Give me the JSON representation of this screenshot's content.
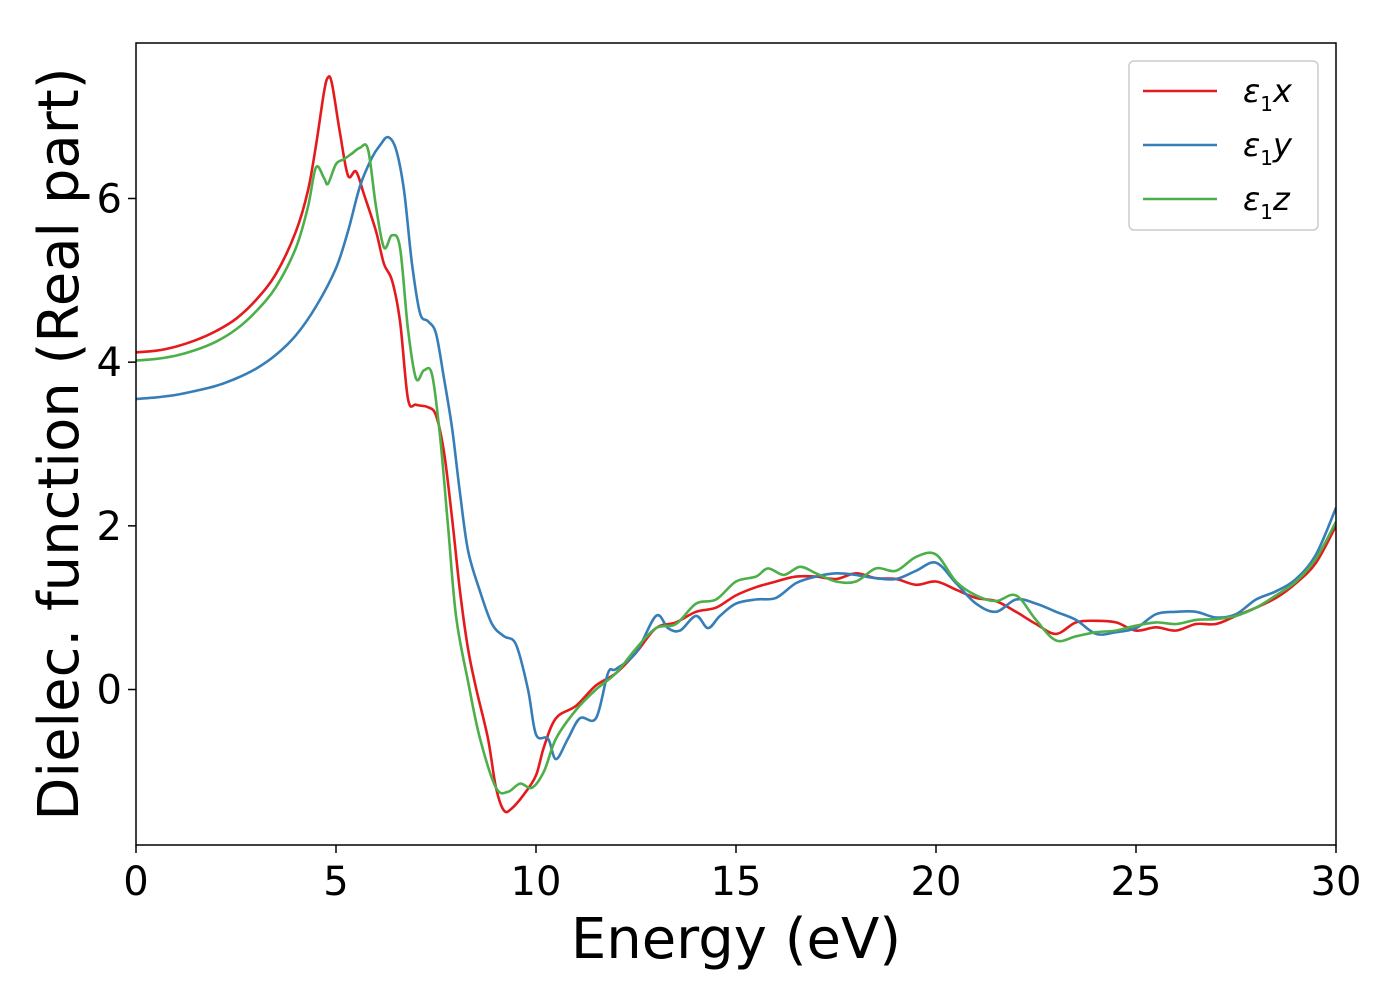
{
  "chart_data": {
    "type": "line",
    "xlabel": "Energy (eV)",
    "ylabel": "Dielec. function (Real part)",
    "xlim": [
      0,
      30
    ],
    "ylim": [
      -1.9,
      7.9
    ],
    "xticks": [
      0,
      5,
      10,
      15,
      20,
      25,
      30
    ],
    "yticks": [
      0,
      2,
      4,
      6
    ],
    "grid": false,
    "legend_position": "top-right",
    "series": [
      {
        "name": "ε1x",
        "legend": {
          "base": "ε",
          "sub": "1",
          "tail": "x"
        },
        "color": "#e41a1c",
        "points": [
          [
            0,
            4.12
          ],
          [
            0.5,
            4.14
          ],
          [
            1,
            4.19
          ],
          [
            1.5,
            4.27
          ],
          [
            2,
            4.38
          ],
          [
            2.5,
            4.53
          ],
          [
            3,
            4.76
          ],
          [
            3.5,
            5.08
          ],
          [
            4,
            5.6
          ],
          [
            4.3,
            6.1
          ],
          [
            4.5,
            6.65
          ],
          [
            4.7,
            7.3
          ],
          [
            4.8,
            7.48
          ],
          [
            4.9,
            7.4
          ],
          [
            5.1,
            6.8
          ],
          [
            5.3,
            6.28
          ],
          [
            5.5,
            6.33
          ],
          [
            5.7,
            6.05
          ],
          [
            6,
            5.6
          ],
          [
            6.2,
            5.2
          ],
          [
            6.4,
            5.0
          ],
          [
            6.6,
            4.5
          ],
          [
            6.8,
            3.55
          ],
          [
            7,
            3.48
          ],
          [
            7.3,
            3.45
          ],
          [
            7.5,
            3.35
          ],
          [
            7.7,
            2.9
          ],
          [
            7.9,
            2.1
          ],
          [
            8.1,
            1.2
          ],
          [
            8.3,
            0.5
          ],
          [
            8.5,
            0.02
          ],
          [
            8.8,
            -0.6
          ],
          [
            9,
            -1.2
          ],
          [
            9.2,
            -1.48
          ],
          [
            9.4,
            -1.45
          ],
          [
            9.7,
            -1.28
          ],
          [
            10,
            -1.05
          ],
          [
            10.2,
            -0.7
          ],
          [
            10.5,
            -0.35
          ],
          [
            11,
            -0.2
          ],
          [
            11.5,
            0.05
          ],
          [
            12,
            0.2
          ],
          [
            12.5,
            0.45
          ],
          [
            13,
            0.75
          ],
          [
            13.5,
            0.82
          ],
          [
            14,
            0.95
          ],
          [
            14.5,
            1.0
          ],
          [
            15,
            1.15
          ],
          [
            15.5,
            1.25
          ],
          [
            16,
            1.32
          ],
          [
            16.5,
            1.38
          ],
          [
            17,
            1.38
          ],
          [
            17.5,
            1.35
          ],
          [
            18,
            1.42
          ],
          [
            18.5,
            1.36
          ],
          [
            19,
            1.35
          ],
          [
            19.5,
            1.28
          ],
          [
            20,
            1.32
          ],
          [
            20.5,
            1.22
          ],
          [
            21,
            1.12
          ],
          [
            21.5,
            1.08
          ],
          [
            22,
            0.95
          ],
          [
            22.5,
            0.8
          ],
          [
            23,
            0.68
          ],
          [
            23.5,
            0.82
          ],
          [
            24,
            0.84
          ],
          [
            24.5,
            0.82
          ],
          [
            25,
            0.72
          ],
          [
            25.5,
            0.76
          ],
          [
            26,
            0.72
          ],
          [
            26.5,
            0.8
          ],
          [
            27,
            0.8
          ],
          [
            27.5,
            0.9
          ],
          [
            28,
            1.0
          ],
          [
            28.5,
            1.12
          ],
          [
            29,
            1.3
          ],
          [
            29.5,
            1.55
          ],
          [
            30,
            2.0
          ]
        ]
      },
      {
        "name": "ε1y",
        "legend": {
          "base": "ε",
          "sub": "1",
          "tail": "y"
        },
        "color": "#377eb8",
        "points": [
          [
            0,
            3.55
          ],
          [
            0.5,
            3.57
          ],
          [
            1,
            3.6
          ],
          [
            1.5,
            3.65
          ],
          [
            2,
            3.71
          ],
          [
            2.5,
            3.8
          ],
          [
            3,
            3.92
          ],
          [
            3.5,
            4.09
          ],
          [
            4,
            4.33
          ],
          [
            4.5,
            4.68
          ],
          [
            5,
            5.15
          ],
          [
            5.3,
            5.6
          ],
          [
            5.6,
            6.15
          ],
          [
            5.9,
            6.5
          ],
          [
            6.1,
            6.65
          ],
          [
            6.3,
            6.75
          ],
          [
            6.5,
            6.6
          ],
          [
            6.7,
            6.1
          ],
          [
            6.9,
            5.2
          ],
          [
            7.1,
            4.6
          ],
          [
            7.3,
            4.5
          ],
          [
            7.5,
            4.35
          ],
          [
            7.7,
            3.8
          ],
          [
            7.9,
            3.2
          ],
          [
            8.1,
            2.4
          ],
          [
            8.3,
            1.7
          ],
          [
            8.6,
            1.2
          ],
          [
            8.9,
            0.8
          ],
          [
            9.2,
            0.65
          ],
          [
            9.5,
            0.55
          ],
          [
            9.8,
            0.0
          ],
          [
            10,
            -0.55
          ],
          [
            10.3,
            -0.6
          ],
          [
            10.5,
            -0.85
          ],
          [
            10.8,
            -0.6
          ],
          [
            11.1,
            -0.35
          ],
          [
            11.5,
            -0.35
          ],
          [
            11.8,
            0.2
          ],
          [
            12,
            0.25
          ],
          [
            12.5,
            0.45
          ],
          [
            13,
            0.9
          ],
          [
            13.3,
            0.75
          ],
          [
            13.6,
            0.72
          ],
          [
            14,
            0.9
          ],
          [
            14.3,
            0.75
          ],
          [
            14.6,
            0.9
          ],
          [
            15,
            1.05
          ],
          [
            15.5,
            1.1
          ],
          [
            16,
            1.12
          ],
          [
            16.5,
            1.3
          ],
          [
            17,
            1.38
          ],
          [
            17.5,
            1.42
          ],
          [
            18,
            1.4
          ],
          [
            18.5,
            1.36
          ],
          [
            19,
            1.35
          ],
          [
            19.5,
            1.45
          ],
          [
            20,
            1.55
          ],
          [
            20.5,
            1.3
          ],
          [
            21,
            1.05
          ],
          [
            21.5,
            0.95
          ],
          [
            22,
            1.1
          ],
          [
            22.5,
            1.05
          ],
          [
            23,
            0.95
          ],
          [
            23.5,
            0.85
          ],
          [
            24,
            0.68
          ],
          [
            24.5,
            0.7
          ],
          [
            25,
            0.75
          ],
          [
            25.5,
            0.92
          ],
          [
            26,
            0.95
          ],
          [
            26.5,
            0.95
          ],
          [
            27,
            0.88
          ],
          [
            27.5,
            0.92
          ],
          [
            28,
            1.1
          ],
          [
            28.5,
            1.2
          ],
          [
            29,
            1.35
          ],
          [
            29.5,
            1.65
          ],
          [
            30,
            2.22
          ]
        ]
      },
      {
        "name": "ε1z",
        "legend": {
          "base": "ε",
          "sub": "1",
          "tail": "z"
        },
        "color": "#4daf4a",
        "points": [
          [
            0,
            4.02
          ],
          [
            0.5,
            4.04
          ],
          [
            1,
            4.08
          ],
          [
            1.5,
            4.15
          ],
          [
            2,
            4.25
          ],
          [
            2.5,
            4.4
          ],
          [
            3,
            4.62
          ],
          [
            3.5,
            4.92
          ],
          [
            4,
            5.4
          ],
          [
            4.3,
            5.9
          ],
          [
            4.5,
            6.38
          ],
          [
            4.7,
            6.25
          ],
          [
            4.8,
            6.18
          ],
          [
            5,
            6.42
          ],
          [
            5.2,
            6.48
          ],
          [
            5.4,
            6.55
          ],
          [
            5.6,
            6.62
          ],
          [
            5.8,
            6.6
          ],
          [
            6,
            5.9
          ],
          [
            6.2,
            5.4
          ],
          [
            6.4,
            5.55
          ],
          [
            6.6,
            5.4
          ],
          [
            6.8,
            4.4
          ],
          [
            7,
            3.8
          ],
          [
            7.2,
            3.9
          ],
          [
            7.4,
            3.85
          ],
          [
            7.6,
            3.1
          ],
          [
            7.8,
            2.0
          ],
          [
            8,
            0.9
          ],
          [
            8.3,
            0.1
          ],
          [
            8.6,
            -0.6
          ],
          [
            9,
            -1.2
          ],
          [
            9.3,
            -1.25
          ],
          [
            9.6,
            -1.15
          ],
          [
            9.9,
            -1.2
          ],
          [
            10.2,
            -1.0
          ],
          [
            10.5,
            -0.6
          ],
          [
            11,
            -0.25
          ],
          [
            11.5,
            0.0
          ],
          [
            12,
            0.2
          ],
          [
            12.5,
            0.5
          ],
          [
            13,
            0.75
          ],
          [
            13.5,
            0.8
          ],
          [
            14,
            1.05
          ],
          [
            14.5,
            1.1
          ],
          [
            15,
            1.32
          ],
          [
            15.5,
            1.38
          ],
          [
            15.8,
            1.48
          ],
          [
            16.2,
            1.4
          ],
          [
            16.6,
            1.5
          ],
          [
            17,
            1.42
          ],
          [
            17.5,
            1.32
          ],
          [
            18,
            1.32
          ],
          [
            18.5,
            1.48
          ],
          [
            19,
            1.45
          ],
          [
            19.5,
            1.62
          ],
          [
            20,
            1.65
          ],
          [
            20.5,
            1.32
          ],
          [
            21,
            1.15
          ],
          [
            21.5,
            1.08
          ],
          [
            22,
            1.15
          ],
          [
            22.5,
            0.85
          ],
          [
            23,
            0.6
          ],
          [
            23.5,
            0.65
          ],
          [
            24,
            0.7
          ],
          [
            24.5,
            0.72
          ],
          [
            25,
            0.78
          ],
          [
            25.5,
            0.82
          ],
          [
            26,
            0.8
          ],
          [
            26.5,
            0.85
          ],
          [
            27,
            0.86
          ],
          [
            27.5,
            0.9
          ],
          [
            28,
            1.0
          ],
          [
            28.5,
            1.15
          ],
          [
            29,
            1.32
          ],
          [
            29.5,
            1.6
          ],
          [
            30,
            2.05
          ]
        ]
      }
    ]
  }
}
